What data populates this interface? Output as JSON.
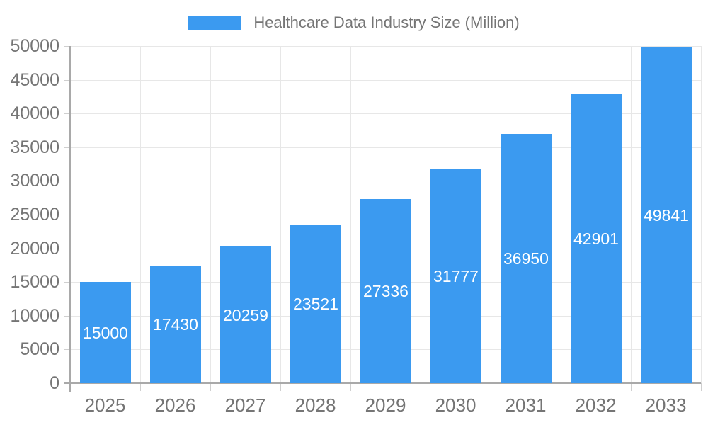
{
  "colors": {
    "bar": "#3b9af0",
    "grid": "#e7e7e7",
    "axis": "#a9a9a9",
    "tick": "#cfcfcf",
    "text": "#757575",
    "bar_label": "#ffffff",
    "background": "#ffffff"
  },
  "legend": {
    "label": "Healthcare Data Industry Size (Million)"
  },
  "chart_data": {
    "type": "bar",
    "title": "Healthcare Data Industry Size (Million)",
    "legend_entries": [
      "Healthcare Data Industry Size (Million)"
    ],
    "legend_position": "top-center",
    "categories": [
      "2025",
      "2026",
      "2027",
      "2028",
      "2029",
      "2030",
      "2031",
      "2032",
      "2033"
    ],
    "values": [
      15000,
      17430,
      20259,
      23521,
      27336,
      31777,
      36950,
      42901,
      49841
    ],
    "value_labels_shown": true,
    "value_label_position": "inside-center",
    "xlabel": "",
    "ylabel": "",
    "ylim": [
      0,
      50000
    ],
    "ytick_step": 5000,
    "ytick_labels": [
      "0",
      "5000",
      "10000",
      "15000",
      "20000",
      "25000",
      "30000",
      "35000",
      "40000",
      "45000",
      "50000"
    ],
    "grid": true
  }
}
